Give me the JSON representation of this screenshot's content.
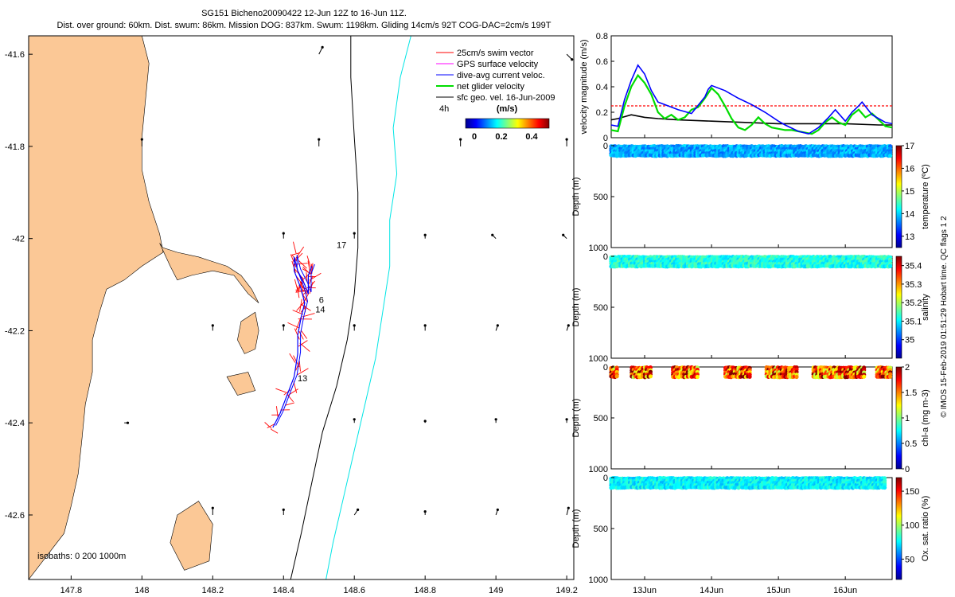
{
  "title": {
    "line1": "SG151 Bicheno20090422 12-Jun 12Z to 16-Jun 11Z.",
    "line2": "Dist. over ground: 60km. Dist. swum: 86km. Mission DOG: 837km. Swum: 1198km. Gliding 14cm/s 92T COG-DAC=2cm/s 199T"
  },
  "colors": {
    "land": "#fbc896",
    "swim": "#ff0000",
    "gps": "#ff00ff",
    "dac": "#0000ff",
    "net": "#00dd00",
    "sfc": "#000000",
    "isobath200": "#000000",
    "isobath1000": "#00e5e5",
    "threshold": "#ff0000"
  },
  "chart_data": [
    {
      "type": "map",
      "id": "track-map",
      "xlim": [
        147.68,
        149.22
      ],
      "ylim": [
        -42.74,
        -41.56
      ],
      "xticks": [
        147.8,
        148,
        148.2,
        148.4,
        148.6,
        148.8,
        149,
        149.2
      ],
      "xtick_labels": [
        "147.8",
        "148",
        "148.2",
        "148.4",
        "148.6",
        "148.8",
        "149",
        "149.2"
      ],
      "yticks": [
        -41.6,
        -41.8,
        -42,
        -42.2,
        -42.4,
        -42.6
      ],
      "ytick_labels": [
        "-41.6",
        "-41.8",
        "-42",
        "-42.2",
        "-42.4",
        "-42.6"
      ],
      "legend": [
        {
          "label": "25cm/s swim vector",
          "key": "swim"
        },
        {
          "label": "GPS surface velocity",
          "key": "gps"
        },
        {
          "label": "dive-avg current veloc.",
          "key": "dac"
        },
        {
          "label": "net glider velocity",
          "key": "net"
        },
        {
          "label": "sfc geo. vel. 16-Jun-2009",
          "key": "sfc"
        }
      ],
      "legend_placement": "top-right",
      "speed_colorbar": {
        "title": "(m/s)",
        "ticks": [
          "0",
          "0.2",
          "0.4"
        ],
        "range": [
          0,
          0.5
        ]
      },
      "track_time_label": "4h",
      "isobaths_label": "isobaths: 0   200  1000m",
      "day_labels": [
        {
          "text": "17",
          "lon": 148.55,
          "lat": -42.02
        },
        {
          "text": "6",
          "lon": 148.5,
          "lat": -42.14
        },
        {
          "text": "14",
          "lon": 148.49,
          "lat": -42.16
        },
        {
          "text": "13",
          "lon": 148.44,
          "lat": -42.31
        }
      ],
      "coast": [
        [
          147.68,
          -41.56
        ],
        [
          148.0,
          -41.56
        ],
        [
          148.02,
          -41.62
        ],
        [
          148.01,
          -41.7
        ],
        [
          148.0,
          -41.78
        ],
        [
          148.0,
          -41.85
        ],
        [
          148.02,
          -41.92
        ],
        [
          148.05,
          -41.99
        ],
        [
          148.06,
          -42.03
        ],
        [
          148.0,
          -42.06
        ],
        [
          147.95,
          -42.09
        ],
        [
          147.9,
          -42.11
        ],
        [
          147.88,
          -42.16
        ],
        [
          147.86,
          -42.22
        ],
        [
          147.86,
          -42.29
        ],
        [
          147.84,
          -42.36
        ],
        [
          147.83,
          -42.44
        ],
        [
          147.82,
          -42.51
        ],
        [
          147.8,
          -42.58
        ],
        [
          147.78,
          -42.64
        ],
        [
          147.72,
          -42.7
        ],
        [
          147.68,
          -42.74
        ]
      ],
      "peninsula": [
        [
          148.05,
          -42.01
        ],
        [
          148.08,
          -42.06
        ],
        [
          148.1,
          -42.09
        ],
        [
          148.14,
          -42.08
        ],
        [
          148.2,
          -42.07
        ],
        [
          148.26,
          -42.08
        ],
        [
          148.3,
          -42.12
        ],
        [
          148.33,
          -42.14
        ],
        [
          148.31,
          -42.11
        ],
        [
          148.28,
          -42.08
        ],
        [
          148.24,
          -42.06
        ],
        [
          148.2,
          -42.05
        ],
        [
          148.16,
          -42.04
        ],
        [
          148.1,
          -42.03
        ],
        [
          148.06,
          -42.02
        ]
      ],
      "islands": [
        [
          [
            148.28,
            -42.18
          ],
          [
            148.32,
            -42.16
          ],
          [
            148.33,
            -42.2
          ],
          [
            148.32,
            -42.24
          ],
          [
            148.29,
            -42.25
          ],
          [
            148.27,
            -42.22
          ]
        ],
        [
          [
            148.24,
            -42.3
          ],
          [
            148.3,
            -42.29
          ],
          [
            148.32,
            -42.33
          ],
          [
            148.27,
            -42.34
          ]
        ],
        [
          [
            148.1,
            -42.6
          ],
          [
            148.16,
            -42.57
          ],
          [
            148.2,
            -42.62
          ],
          [
            148.19,
            -42.7
          ],
          [
            148.12,
            -42.72
          ],
          [
            148.08,
            -42.66
          ]
        ]
      ],
      "isobath_200": [
        [
          148.59,
          -41.56
        ],
        [
          148.59,
          -41.65
        ],
        [
          148.6,
          -41.78
        ],
        [
          148.61,
          -41.9
        ],
        [
          148.61,
          -42.02
        ],
        [
          148.6,
          -42.12
        ],
        [
          148.58,
          -42.22
        ],
        [
          148.55,
          -42.32
        ],
        [
          148.51,
          -42.42
        ],
        [
          148.48,
          -42.53
        ],
        [
          148.45,
          -42.64
        ],
        [
          148.42,
          -42.74
        ]
      ],
      "isobath_1000": [
        [
          148.76,
          -41.56
        ],
        [
          148.73,
          -41.65
        ],
        [
          148.71,
          -41.76
        ],
        [
          148.72,
          -41.86
        ],
        [
          148.7,
          -41.96
        ],
        [
          148.7,
          -42.06
        ],
        [
          148.68,
          -42.16
        ],
        [
          148.66,
          -42.26
        ],
        [
          148.63,
          -42.36
        ],
        [
          148.6,
          -42.46
        ],
        [
          148.57,
          -42.56
        ],
        [
          148.54,
          -42.66
        ],
        [
          148.52,
          -42.74
        ]
      ],
      "track": [
        [
          148.37,
          -42.41
        ],
        [
          148.39,
          -42.38
        ],
        [
          148.41,
          -42.34
        ],
        [
          148.43,
          -42.3
        ],
        [
          148.44,
          -42.25
        ],
        [
          148.44,
          -42.21
        ],
        [
          148.45,
          -42.17
        ],
        [
          148.46,
          -42.14
        ],
        [
          148.45,
          -42.11
        ],
        [
          148.43,
          -42.07
        ],
        [
          148.43,
          -42.04
        ],
        [
          148.44,
          -42.07
        ],
        [
          148.46,
          -42.1
        ],
        [
          148.47,
          -42.12
        ],
        [
          148.47,
          -42.08
        ],
        [
          148.48,
          -42.06
        ]
      ],
      "sfc_vectors": [
        {
          "lon": 148.5,
          "lat": -41.6,
          "u": 0.02,
          "v": 0.04
        },
        {
          "lon": 149.2,
          "lat": -41.6,
          "u": 0.03,
          "v": -0.03
        },
        {
          "lon": 148.0,
          "lat": -41.8,
          "u": 0.0,
          "v": 0.04
        },
        {
          "lon": 148.5,
          "lat": -41.8,
          "u": 0.0,
          "v": 0.04
        },
        {
          "lon": 148.9,
          "lat": -41.8,
          "u": 0.0,
          "v": 0.04
        },
        {
          "lon": 149.2,
          "lat": -41.8,
          "u": 0.0,
          "v": 0.04
        },
        {
          "lon": 148.4,
          "lat": -42.0,
          "u": 0.0,
          "v": 0.03
        },
        {
          "lon": 148.6,
          "lat": -42.0,
          "u": 0.0,
          "v": 0.03
        },
        {
          "lon": 148.8,
          "lat": -42.0,
          "u": 0.0,
          "v": 0.02
        },
        {
          "lon": 149.0,
          "lat": -42.0,
          "u": -0.02,
          "v": 0.02
        },
        {
          "lon": 149.2,
          "lat": -42.0,
          "u": -0.02,
          "v": 0.02
        },
        {
          "lon": 148.2,
          "lat": -42.2,
          "u": 0.0,
          "v": 0.03
        },
        {
          "lon": 148.4,
          "lat": -42.2,
          "u": 0.0,
          "v": 0.03
        },
        {
          "lon": 148.6,
          "lat": -42.2,
          "u": 0.0,
          "v": 0.03
        },
        {
          "lon": 148.8,
          "lat": -42.2,
          "u": 0.0,
          "v": 0.03
        },
        {
          "lon": 149.0,
          "lat": -42.2,
          "u": 0.01,
          "v": 0.03
        },
        {
          "lon": 149.2,
          "lat": -42.2,
          "u": 0.01,
          "v": 0.03
        },
        {
          "lon": 147.95,
          "lat": -42.4,
          "u": 0.02,
          "v": 0.0
        },
        {
          "lon": 148.6,
          "lat": -42.4,
          "u": 0.0,
          "v": 0.02
        },
        {
          "lon": 148.8,
          "lat": -42.4,
          "u": 0.0,
          "v": 0.01
        },
        {
          "lon": 149.0,
          "lat": -42.4,
          "u": 0.0,
          "v": 0.02
        },
        {
          "lon": 149.2,
          "lat": -42.4,
          "u": 0.0,
          "v": 0.02
        },
        {
          "lon": 148.2,
          "lat": -42.6,
          "u": 0.0,
          "v": 0.04
        },
        {
          "lon": 148.4,
          "lat": -42.6,
          "u": 0.0,
          "v": 0.03
        },
        {
          "lon": 148.6,
          "lat": -42.6,
          "u": 0.02,
          "v": 0.03
        },
        {
          "lon": 148.8,
          "lat": -42.6,
          "u": 0.0,
          "v": 0.02
        },
        {
          "lon": 149.0,
          "lat": -42.6,
          "u": 0.01,
          "v": 0.03
        },
        {
          "lon": 149.2,
          "lat": -42.6,
          "u": 0.01,
          "v": 0.04
        }
      ]
    },
    {
      "type": "line",
      "id": "velocity-panel",
      "ylabel": "velocity magnitude (m/s)",
      "xlim": [
        12.5,
        16.7
      ],
      "ylim": [
        0,
        0.8
      ],
      "yticks": [
        0,
        0.2,
        0.4,
        0.6,
        0.8
      ],
      "ytick_labels": [
        "0",
        "0.2",
        "0.4",
        "0.6",
        "0.8"
      ],
      "threshold": 0.25,
      "series": [
        {
          "name": "dive-avg current veloc.",
          "key": "dac",
          "x": [
            12.5,
            12.6,
            12.7,
            12.8,
            12.9,
            13.0,
            13.1,
            13.2,
            13.3,
            13.5,
            13.7,
            13.9,
            13.95,
            14.0,
            14.2,
            14.4,
            14.6,
            14.8,
            15.0,
            15.1,
            15.3,
            15.45,
            15.6,
            15.75,
            15.85,
            16.0,
            16.1,
            16.2,
            16.25,
            16.4,
            16.6,
            16.7
          ],
          "y": [
            0.1,
            0.09,
            0.3,
            0.45,
            0.57,
            0.5,
            0.37,
            0.28,
            0.26,
            0.22,
            0.19,
            0.32,
            0.38,
            0.41,
            0.37,
            0.31,
            0.26,
            0.2,
            0.13,
            0.1,
            0.05,
            0.03,
            0.08,
            0.16,
            0.22,
            0.13,
            0.2,
            0.25,
            0.28,
            0.18,
            0.12,
            0.11
          ]
        },
        {
          "name": "net glider velocity",
          "key": "net",
          "x": [
            12.5,
            12.6,
            12.7,
            12.8,
            12.9,
            13.0,
            13.1,
            13.2,
            13.3,
            13.4,
            13.5,
            13.6,
            13.7,
            13.8,
            13.9,
            14.0,
            14.1,
            14.2,
            14.3,
            14.4,
            14.5,
            14.6,
            14.7,
            14.8,
            14.9,
            15.0,
            15.1,
            15.2,
            15.3,
            15.4,
            15.5,
            15.6,
            15.7,
            15.8,
            15.9,
            16.0,
            16.1,
            16.2,
            16.3,
            16.4,
            16.5,
            16.6,
            16.7
          ],
          "y": [
            0.06,
            0.05,
            0.25,
            0.4,
            0.49,
            0.43,
            0.34,
            0.2,
            0.15,
            0.18,
            0.14,
            0.16,
            0.22,
            0.24,
            0.31,
            0.39,
            0.34,
            0.25,
            0.15,
            0.08,
            0.06,
            0.1,
            0.16,
            0.11,
            0.08,
            0.07,
            0.06,
            0.06,
            0.05,
            0.04,
            0.03,
            0.06,
            0.12,
            0.16,
            0.12,
            0.1,
            0.18,
            0.22,
            0.16,
            0.19,
            0.14,
            0.09,
            0.08
          ]
        },
        {
          "name": "sfc geo. vel.",
          "key": "sfc",
          "x": [
            12.5,
            12.6,
            12.8,
            13.0,
            13.2,
            13.5,
            14.0,
            14.5,
            15.0,
            15.5,
            16.0,
            16.5,
            16.7
          ],
          "y": [
            0.14,
            0.15,
            0.18,
            0.16,
            0.15,
            0.14,
            0.13,
            0.12,
            0.11,
            0.11,
            0.11,
            0.1,
            0.1
          ]
        }
      ]
    },
    {
      "type": "scatter",
      "id": "temperature-section",
      "ylabel": "Depth (m)",
      "ylim": [
        0,
        1000
      ],
      "ytick_labels": [
        "0",
        "500",
        "1000"
      ],
      "sampled_depth_range": [
        0,
        100
      ],
      "colorbar_label": "temperature (ºC)",
      "colorbar_ticks": [
        "17",
        "16",
        "15",
        "14",
        "13"
      ],
      "crange": [
        12.5,
        17
      ],
      "typical_value": 13.8,
      "spread": 0.3,
      "x_extent": [
        12.5,
        16.7
      ],
      "gaps": []
    },
    {
      "type": "scatter",
      "id": "salinity-section",
      "ylabel": "Depth (m)",
      "ylim": [
        0,
        1000
      ],
      "ytick_labels": [
        "0",
        "500",
        "1000"
      ],
      "sampled_depth_range": [
        0,
        100
      ],
      "colorbar_label": "salinity",
      "colorbar_ticks": [
        "35.4",
        "35.3",
        "35.2",
        "35.1",
        "35"
      ],
      "crange": [
        34.9,
        35.45
      ],
      "typical_value": 35.12,
      "spread": 0.04,
      "x_extent": [
        12.5,
        16.7
      ],
      "gaps": []
    },
    {
      "type": "scatter",
      "id": "chla-section",
      "ylabel": "Depth (m)",
      "ylim": [
        0,
        1000
      ],
      "ytick_labels": [
        "0",
        "500",
        "1000"
      ],
      "sampled_depth_range": [
        0,
        100
      ],
      "colorbar_label": "chl-a (mg m-3)",
      "colorbar_ticks": [
        "2",
        "1.5",
        "1",
        "0.5",
        "0"
      ],
      "crange": [
        0,
        2
      ],
      "typical_value": 1.6,
      "spread": 0.5,
      "x_extent": [
        12.5,
        16.7
      ],
      "gaps": [
        [
          12.6,
          12.8
        ],
        [
          13.1,
          13.4
        ],
        [
          13.8,
          14.2
        ],
        [
          14.6,
          14.8
        ],
        [
          15.3,
          15.5
        ],
        [
          16.3,
          16.45
        ]
      ]
    },
    {
      "type": "scatter",
      "id": "oxygen-section",
      "ylabel": "Depth (m)",
      "ylim": [
        0,
        1000
      ],
      "ytick_labels": [
        "0",
        "500",
        "1000"
      ],
      "sampled_depth_range": [
        0,
        100
      ],
      "colorbar_label": "Ox. sat. ratio (%)",
      "colorbar_ticks": [
        "150",
        "100",
        "50"
      ],
      "crange": [
        20,
        170
      ],
      "typical_value": 75,
      "spread": 10,
      "x_extent": [
        12.5,
        16.6
      ],
      "gaps": []
    }
  ],
  "time_axis": {
    "ticks": [
      13,
      14,
      15,
      16
    ],
    "labels": [
      "13Jun",
      "14Jun",
      "15Jun",
      "16Jun"
    ]
  },
  "credit": "© IMOS 15-Feb-2019 01:51:29 Hobart time. QC flags 1  2"
}
